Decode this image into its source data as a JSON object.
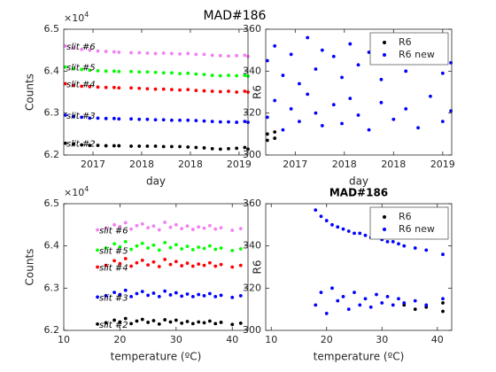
{
  "title": "MAD#186",
  "chart_data": [
    {
      "type": "scatter",
      "xlabel": "day",
      "ylabel": "Counts",
      "y_scale_label": "×10",
      "y_exponent": 4,
      "label_series": true,
      "xlim": [
        2016.64,
        2018.91
      ],
      "xticks": [
        {
          "value": 2017.0,
          "label": "2017"
        },
        {
          "value": 2017.6,
          "label": "2018"
        },
        {
          "value": 2018.2,
          "label": "2018"
        },
        {
          "value": 2018.8,
          "label": "2019"
        }
      ],
      "ylim": [
        62000,
        65000
      ],
      "yticks": [
        {
          "value": 62000,
          "label": "6.2"
        },
        {
          "value": 63000,
          "label": "6.3"
        },
        {
          "value": 64000,
          "label": "6.4"
        },
        {
          "value": 65000,
          "label": "6.5"
        }
      ],
      "x": [
        2016.66,
        2016.76,
        2016.86,
        2016.96,
        2017.06,
        2017.16,
        2017.26,
        2017.32,
        2017.47,
        2017.57,
        2017.67,
        2017.77,
        2017.87,
        2017.97,
        2018.07,
        2018.17,
        2018.27,
        2018.37,
        2018.47,
        2018.57,
        2018.67,
        2018.77,
        2018.87,
        2018.91
      ],
      "series": [
        {
          "name": "slit #6",
          "color": "#f080f0",
          "values": [
            64600,
            64550,
            64520,
            64500,
            64480,
            64470,
            64460,
            64450,
            64440,
            64440,
            64430,
            64420,
            64430,
            64420,
            64410,
            64420,
            64400,
            64400,
            64380,
            64370,
            64360,
            64370,
            64380,
            64350
          ]
        },
        {
          "name": "slit #5",
          "color": "#00ff00",
          "values": [
            64100,
            64060,
            64040,
            64020,
            64010,
            64000,
            64000,
            63990,
            63990,
            63980,
            63980,
            63970,
            63960,
            63960,
            63940,
            63950,
            63930,
            63920,
            63900,
            63890,
            63900,
            63890,
            63900,
            63880
          ]
        },
        {
          "name": "slit #4",
          "color": "#ff0000",
          "values": [
            63700,
            63660,
            63640,
            63630,
            63620,
            63610,
            63610,
            63600,
            63600,
            63590,
            63580,
            63570,
            63570,
            63560,
            63550,
            63560,
            63540,
            63530,
            63520,
            63510,
            63520,
            63500,
            63520,
            63500
          ]
        },
        {
          "name": "slit #3",
          "color": "#0000ff",
          "values": [
            62950,
            62920,
            62900,
            62880,
            62880,
            62870,
            62870,
            62860,
            62860,
            62850,
            62850,
            62840,
            62840,
            62830,
            62830,
            62830,
            62820,
            62810,
            62800,
            62790,
            62790,
            62780,
            62800,
            62780
          ]
        },
        {
          "name": "slit #2",
          "color": "#000000",
          "values": [
            62280,
            62260,
            62240,
            62230,
            62230,
            62220,
            62220,
            62220,
            62210,
            62210,
            62210,
            62210,
            62200,
            62200,
            62200,
            62190,
            62180,
            62170,
            62150,
            62140,
            62150,
            62160,
            62180,
            62140
          ]
        }
      ]
    },
    {
      "type": "scatter",
      "xlabel": "day",
      "ylabel": "R6",
      "legend": "northeast",
      "xlim": [
        2016.64,
        2018.91
      ],
      "xticks": [
        {
          "value": 2017.0,
          "label": "2017"
        },
        {
          "value": 2017.6,
          "label": "2018"
        },
        {
          "value": 2018.2,
          "label": "2018"
        },
        {
          "value": 2018.8,
          "label": "2019"
        }
      ],
      "ylim": [
        300,
        360
      ],
      "yticks": [
        300,
        320,
        340,
        360
      ],
      "x": [
        2016.66,
        2016.66,
        2016.75,
        2016.75,
        2016.85,
        2016.85,
        2016.95,
        2016.95,
        2017.05,
        2017.05,
        2017.15,
        2017.15,
        2017.25,
        2017.25,
        2017.33,
        2017.33,
        2017.47,
        2017.47,
        2017.57,
        2017.57,
        2017.67,
        2017.67,
        2017.77,
        2017.77,
        2017.9,
        2017.9,
        2018.05,
        2018.05,
        2018.2,
        2018.2,
        2018.35,
        2018.35,
        2018.5,
        2018.5,
        2018.65,
        2018.65,
        2018.8,
        2018.8,
        2018.9,
        2018.9
      ],
      "series": [
        {
          "name": "R6",
          "color": "#000000",
          "values": [
            310,
            307,
            311,
            308,
            null,
            null,
            null,
            null,
            null,
            null,
            null,
            null,
            null,
            null,
            null,
            null,
            null,
            null,
            null,
            null,
            null,
            null,
            null,
            null,
            null,
            null,
            null,
            null,
            null,
            null,
            null,
            null,
            null,
            null,
            null,
            null,
            null,
            null,
            null,
            null
          ]
        },
        {
          "name": "R6 new",
          "color": "#0000ff",
          "values": [
            345,
            318,
            352,
            326,
            338,
            312,
            348,
            322,
            334,
            316,
            356,
            329,
            341,
            320,
            350,
            314,
            347,
            324,
            337,
            315,
            353,
            327,
            343,
            319,
            349,
            312,
            336,
            325,
            355,
            317,
            340,
            322,
            346,
            313,
            351,
            328,
            339,
            316,
            344,
            321
          ]
        }
      ]
    },
    {
      "type": "scatter",
      "xlabel": "temperature (ºC)",
      "ylabel": "Counts",
      "y_scale_label": "×10",
      "y_exponent": 4,
      "label_series": true,
      "xlim": [
        10,
        42.8
      ],
      "xticks": [
        10,
        20,
        30,
        40
      ],
      "ylim": [
        62000,
        65000
      ],
      "yticks": [
        {
          "value": 62000,
          "label": "6.2"
        },
        {
          "value": 63000,
          "label": "6.3"
        },
        {
          "value": 64000,
          "label": "6.4"
        },
        {
          "value": 65000,
          "label": "6.5"
        }
      ],
      "x": [
        16,
        17.5,
        19,
        20,
        21,
        22,
        23,
        24,
        25,
        26,
        27,
        28,
        29,
        30,
        31,
        32,
        33,
        34,
        35,
        36,
        37,
        38,
        40,
        41.5
      ],
      "series": [
        {
          "name": "slit #6",
          "color": "#f080f0",
          "values": [
            64380,
            64420,
            64500,
            64460,
            64550,
            64400,
            64480,
            64520,
            64430,
            64470,
            64380,
            64560,
            64440,
            64500,
            64410,
            64470,
            64390,
            64450,
            64420,
            64480,
            64400,
            64430,
            64370,
            64410
          ]
        },
        {
          "name": "slit #5",
          "color": "#00ff00",
          "values": [
            63900,
            63950,
            64050,
            63980,
            64100,
            63920,
            64000,
            64060,
            63950,
            64020,
            63900,
            64080,
            63960,
            64030,
            63930,
            63990,
            63910,
            63970,
            63940,
            64000,
            63920,
            63950,
            63890,
            63930
          ]
        },
        {
          "name": "slit #4",
          "color": "#ff0000",
          "values": [
            63500,
            63540,
            63650,
            63580,
            63700,
            63520,
            63600,
            63660,
            63550,
            63620,
            63510,
            63680,
            63560,
            63630,
            63530,
            63590,
            63520,
            63570,
            63540,
            63600,
            63520,
            63560,
            63500,
            63540
          ]
        },
        {
          "name": "slit #3",
          "color": "#0000ff",
          "values": [
            62790,
            62820,
            62900,
            62850,
            62950,
            62800,
            62870,
            62920,
            62830,
            62880,
            62800,
            62930,
            62840,
            62890,
            62810,
            62860,
            62800,
            62850,
            62820,
            62870,
            62800,
            62830,
            62780,
            62820
          ]
        },
        {
          "name": "slit #2",
          "color": "#000000",
          "values": [
            62150,
            62180,
            62240,
            62200,
            62280,
            62160,
            62220,
            62260,
            62190,
            62230,
            62150,
            62250,
            62200,
            62240,
            62170,
            62210,
            62160,
            62200,
            62180,
            62220,
            62160,
            62190,
            62140,
            62170
          ]
        }
      ]
    },
    {
      "type": "scatter",
      "title": "MAD#186",
      "xlabel": "temperature (ºC)",
      "ylabel": "R6",
      "legend": "northeast",
      "xlim": [
        9,
        42.6
      ],
      "xticks": [
        10,
        20,
        30,
        40
      ],
      "ylim": [
        300,
        360
      ],
      "yticks": [
        300,
        320,
        340,
        360
      ],
      "x": [
        18,
        18,
        19,
        19,
        20,
        20,
        21,
        21,
        22,
        22,
        23,
        23,
        24,
        24,
        25,
        25,
        26,
        26,
        27,
        27,
        28,
        28,
        29,
        29,
        30,
        30,
        31,
        31,
        32,
        32,
        33,
        33,
        34,
        34,
        36,
        36,
        38,
        38,
        41,
        41
      ],
      "series": [
        {
          "name": "R6",
          "color": "#000000",
          "values": [
            null,
            null,
            null,
            null,
            null,
            null,
            null,
            null,
            null,
            null,
            null,
            null,
            null,
            null,
            null,
            null,
            null,
            null,
            null,
            null,
            null,
            null,
            null,
            null,
            null,
            null,
            null,
            null,
            null,
            null,
            null,
            null,
            312,
            null,
            310,
            null,
            311,
            null,
            313,
            309
          ]
        },
        {
          "name": "R6 new",
          "color": "#0000ff",
          "values": [
            357,
            312,
            354,
            318,
            352,
            308,
            350,
            320,
            349,
            314,
            348,
            316,
            347,
            310,
            346,
            318,
            346,
            312,
            345,
            315,
            344,
            311,
            344,
            317,
            343,
            313,
            342,
            316,
            342,
            312,
            341,
            315,
            340,
            313,
            339,
            314,
            338,
            312,
            336,
            315
          ]
        }
      ]
    }
  ]
}
